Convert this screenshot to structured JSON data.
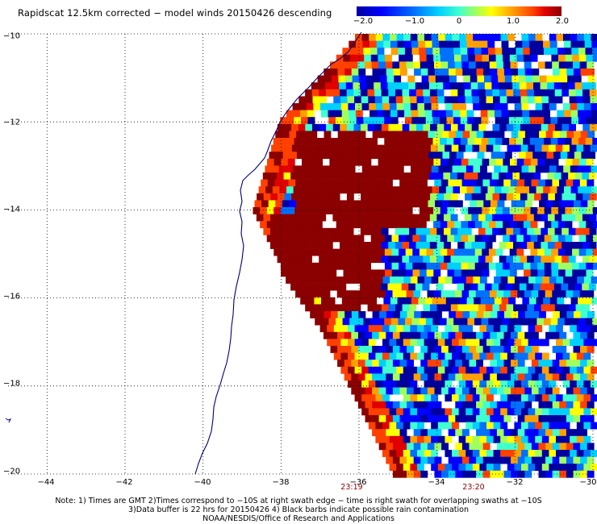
{
  "title": "Rapidscat 12.5km corrected − model winds 20150426 descending",
  "colorbar": {
    "labels": [
      "−2.0",
      "−1.0",
      "0",
      "1.0",
      "2.0"
    ],
    "values": [
      -2.0,
      -1.0,
      0,
      1.0,
      2.0
    ],
    "colors": [
      "#0000a0",
      "#0000ff",
      "#0070ff",
      "#00d0ff",
      "#40ffd0",
      "#a0ff60",
      "#ffff00",
      "#ffa000",
      "#ff4000",
      "#e00000",
      "#8b0000"
    ]
  },
  "axes": {
    "lon_labels": [
      "−44",
      "−42",
      "−40",
      "−38",
      "−36",
      "−34",
      "−32",
      "−30"
    ],
    "lat_labels": [
      "−10",
      "−12",
      "−14",
      "−16",
      "−18",
      "−20"
    ],
    "lon_range": [
      -45,
      -30
    ],
    "lat_range": [
      -20,
      -10
    ]
  },
  "swath_times": [
    "23:19",
    "23:20"
  ],
  "notes": [
    "Note: 1) Times are GMT 2)Times correspond to −10S at right swath edge − time is right swath for overlapping swaths at −10S",
    "3)Data buffer is 22 hrs for 20150426 4) Black barbs indicate possible rain contamination",
    "NOAA/NESDIS/Office of Research and Applications"
  ]
}
